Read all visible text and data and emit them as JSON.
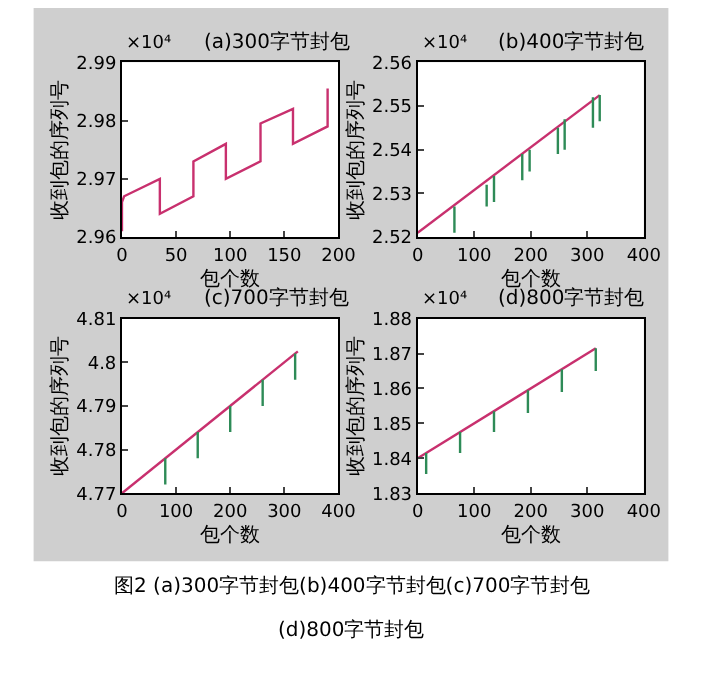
{
  "chart_data": [
    {
      "type": "line",
      "title": "(a)300字节封包",
      "xlabel": "包个数",
      "ylabel": "收到包的序列号",
      "annotations": [
        "×10⁴",
        "图2 (a)300字节封包(b)400字节封包(c)700字节封包",
        "(d)800字节封包"
      ],
      "xlim": [
        0,
        200
      ],
      "xticks": [
        0,
        50,
        100,
        150,
        200
      ],
      "ylim": [
        2.96,
        2.99
      ],
      "yticks": [
        2.96,
        2.97,
        2.98,
        2.99
      ],
      "grid": false,
      "series": [
        {
          "color": "#c8306e",
          "x": [
            0,
            0,
            2,
            35,
            35,
            66,
            66,
            96,
            96,
            128,
            128,
            158,
            158,
            190,
            190
          ],
          "values": [
            2.961,
            2.966,
            2.967,
            2.97,
            2.964,
            2.967,
            2.973,
            2.976,
            2.97,
            2.973,
            2.9795,
            2.982,
            2.976,
            2.979,
            2.9855
          ]
        }
      ]
    },
    {
      "type": "line",
      "title": "(b)400字节封包",
      "xlabel": "包个数",
      "ylabel": "收到包的序列号",
      "annotations": [
        "×10⁴"
      ],
      "xlim": [
        0,
        400
      ],
      "xticks": [
        0,
        100,
        200,
        300,
        400
      ],
      "ylim": [
        2.52,
        2.56
      ],
      "yticks": [
        2.52,
        2.53,
        2.54,
        2.55,
        2.56
      ],
      "grid": false,
      "series": [
        {
          "color": "#c8306e",
          "x": [
            0,
            322
          ],
          "values": [
            2.521,
            2.5525
          ]
        },
        {
          "color": "#2e8b57",
          "x": [
            65,
            65,
            null,
            122,
            122,
            null,
            135,
            135,
            null,
            185,
            185,
            null,
            198,
            198,
            null,
            248,
            248,
            null,
            260,
            260,
            null,
            310,
            310,
            null,
            322,
            322
          ],
          "values": [
            2.527,
            2.521,
            null,
            2.532,
            2.527,
            null,
            2.534,
            2.528,
            null,
            2.539,
            2.533,
            null,
            2.54,
            2.535,
            null,
            2.545,
            2.539,
            null,
            2.547,
            2.54,
            null,
            2.552,
            2.545,
            null,
            2.5525,
            2.5465
          ]
        }
      ]
    },
    {
      "type": "line",
      "title": "(c)700字节封包",
      "xlabel": "包个数",
      "ylabel": "收到包的序列号",
      "annotations": [
        "×10⁴"
      ],
      "xlim": [
        0,
        400
      ],
      "xticks": [
        0,
        100,
        200,
        300,
        400
      ],
      "ylim": [
        4.77,
        4.81
      ],
      "yticks": [
        4.77,
        4.78,
        4.79,
        4.8,
        4.81
      ],
      "grid": false,
      "series": [
        {
          "color": "#c8306e",
          "x": [
            0,
            325
          ],
          "values": [
            4.77,
            4.8025
          ]
        },
        {
          "color": "#2e8b57",
          "x": [
            80,
            80,
            null,
            140,
            140,
            null,
            200,
            200,
            null,
            260,
            260,
            null,
            320,
            320
          ],
          "values": [
            4.778,
            4.772,
            null,
            4.784,
            4.778,
            null,
            4.79,
            4.784,
            null,
            4.796,
            4.79,
            null,
            4.802,
            4.796
          ]
        }
      ]
    },
    {
      "type": "line",
      "title": "(d)800字节封包",
      "xlabel": "包个数",
      "ylabel": "收到包的序列号",
      "annotations": [
        "×10⁴"
      ],
      "xlim": [
        0,
        400
      ],
      "xticks": [
        0,
        100,
        200,
        300,
        400
      ],
      "ylim": [
        1.83,
        1.88
      ],
      "yticks": [
        1.83,
        1.84,
        1.85,
        1.86,
        1.87,
        1.88
      ],
      "grid": false,
      "series": [
        {
          "color": "#c8306e",
          "x": [
            0,
            315
          ],
          "values": [
            1.84,
            1.8715
          ]
        },
        {
          "color": "#2e8b57",
          "x": [
            15,
            15,
            null,
            75,
            75,
            null,
            135,
            135,
            null,
            195,
            195,
            null,
            255,
            255,
            null,
            315,
            315
          ],
          "values": [
            1.8415,
            1.8355,
            null,
            1.8475,
            1.8415,
            null,
            1.8535,
            1.8475,
            null,
            1.8595,
            1.853,
            null,
            1.8655,
            1.859,
            null,
            1.8715,
            1.865
          ]
        }
      ]
    }
  ]
}
